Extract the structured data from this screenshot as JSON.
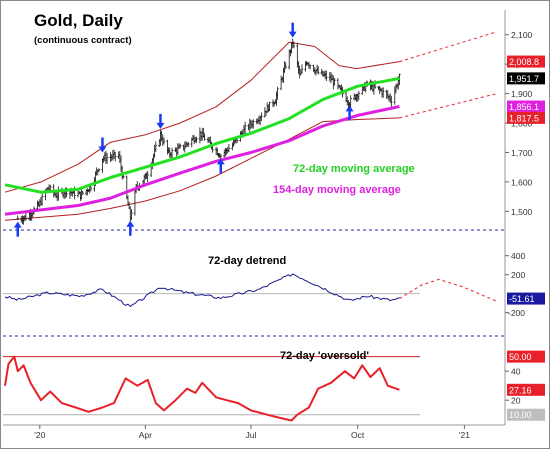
{
  "chart_data": [
    {
      "type": "ohlc",
      "title": "Gold, Daily",
      "subtitle": "(continuous contract)",
      "ylim": [
        1440,
        2150
      ],
      "x_ticks": [
        "'20",
        "Apr",
        "Jul",
        "Oct",
        "'21"
      ],
      "y_ticks": [
        "1,500",
        "1,600",
        "1,700",
        "1,800",
        "1,900",
        "2,000",
        "2,100"
      ],
      "price_labels": [
        {
          "text": "2,008.8",
          "value": 2008.8,
          "color": "#e8202a"
        },
        {
          "text": "1,951.7",
          "value": 1951.7,
          "color": "#000000"
        },
        {
          "text": "1,856.1",
          "value": 1856.1,
          "color": "#e020e0"
        },
        {
          "text": "1,817.5",
          "value": 1817.5,
          "color": "#e8202a"
        }
      ],
      "annotations": [
        "72-day moving average",
        "154-day moving average"
      ],
      "price_anchors": [
        [
          "2019-12-13",
          1475
        ],
        [
          "2019-12-20",
          1480
        ],
        [
          "2019-12-31",
          1520
        ],
        [
          "2020-01-08",
          1580
        ],
        [
          "2020-01-15",
          1555
        ],
        [
          "2020-01-24",
          1570
        ],
        [
          "2020-02-05",
          1555
        ],
        [
          "2020-02-14",
          1585
        ],
        [
          "2020-02-24",
          1680
        ],
        [
          "2020-03-09",
          1690
        ],
        [
          "2020-03-19",
          1480
        ],
        [
          "2020-03-24",
          1580
        ],
        [
          "2020-04-02",
          1620
        ],
        [
          "2020-04-14",
          1760
        ],
        [
          "2020-04-21",
          1695
        ],
        [
          "2020-05-04",
          1720
        ],
        [
          "2020-05-18",
          1765
        ],
        [
          "2020-06-05",
          1690
        ],
        [
          "2020-06-15",
          1725
        ],
        [
          "2020-06-26",
          1780
        ],
        [
          "2020-07-08",
          1820
        ],
        [
          "2020-07-22",
          1880
        ],
        [
          "2020-08-06",
          2075
        ],
        [
          "2020-08-12",
          1960
        ],
        [
          "2020-08-18",
          2010
        ],
        [
          "2020-08-28",
          1970
        ],
        [
          "2020-09-08",
          1950
        ],
        [
          "2020-09-24",
          1870
        ],
        [
          "2020-10-01",
          1900
        ],
        [
          "2020-10-09",
          1930
        ],
        [
          "2020-10-21",
          1910
        ],
        [
          "2020-10-30",
          1880
        ],
        [
          "2020-11-06",
          1955
        ]
      ],
      "series": [
        {
          "name": "72-day moving average",
          "color": "#22e022",
          "points": [
            [
              "2019-12-02",
              1590
            ],
            [
              "2020-01-02",
              1565
            ],
            [
              "2020-02-03",
              1575
            ],
            [
              "2020-03-02",
              1615
            ],
            [
              "2020-04-01",
              1650
            ],
            [
              "2020-05-01",
              1685
            ],
            [
              "2020-06-01",
              1730
            ],
            [
              "2020-07-01",
              1765
            ],
            [
              "2020-08-03",
              1815
            ],
            [
              "2020-09-01",
              1880
            ],
            [
              "2020-10-01",
              1925
            ],
            [
              "2020-11-06",
              1951.7
            ]
          ]
        },
        {
          "name": "154-day moving average",
          "color": "#e020e0",
          "points": [
            [
              "2019-12-02",
              1490
            ],
            [
              "2020-01-02",
              1505
            ],
            [
              "2020-02-03",
              1520
            ],
            [
              "2020-03-02",
              1545
            ],
            [
              "2020-04-01",
              1590
            ],
            [
              "2020-05-01",
              1630
            ],
            [
              "2020-06-01",
              1670
            ],
            [
              "2020-07-01",
              1700
            ],
            [
              "2020-08-03",
              1740
            ],
            [
              "2020-09-01",
              1790
            ],
            [
              "2020-10-01",
              1826
            ],
            [
              "2020-11-06",
              1856.1
            ]
          ]
        },
        {
          "name": "upper band",
          "color": "#b52020",
          "points": [
            [
              "2019-12-02",
              1565
            ],
            [
              "2020-01-02",
              1600
            ],
            [
              "2020-02-03",
              1660
            ],
            [
              "2020-03-02",
              1735
            ],
            [
              "2020-04-01",
              1760
            ],
            [
              "2020-05-01",
              1800
            ],
            [
              "2020-06-01",
              1855
            ],
            [
              "2020-07-01",
              1945
            ],
            [
              "2020-08-03",
              2075
            ],
            [
              "2020-08-25",
              2060
            ],
            [
              "2020-09-15",
              1995
            ],
            [
              "2020-09-30",
              1985
            ],
            [
              "2020-11-06",
              2008.8
            ]
          ]
        },
        {
          "name": "lower band",
          "color": "#b52020",
          "points": [
            [
              "2019-12-02",
              1470
            ],
            [
              "2020-01-02",
              1480
            ],
            [
              "2020-02-03",
              1490
            ],
            [
              "2020-03-02",
              1510
            ],
            [
              "2020-04-01",
              1535
            ],
            [
              "2020-05-01",
              1570
            ],
            [
              "2020-06-01",
              1620
            ],
            [
              "2020-07-01",
              1680
            ],
            [
              "2020-08-03",
              1745
            ],
            [
              "2020-09-01",
              1805
            ],
            [
              "2020-10-01",
              1812
            ],
            [
              "2020-11-06",
              1817.5
            ]
          ]
        },
        {
          "name": "upper band projection",
          "color": "#e8202a",
          "dashed": true,
          "points": [
            [
              "2020-11-06",
              2008.8
            ],
            [
              "2021-01-29",
              2110
            ]
          ]
        },
        {
          "name": "lower band projection",
          "color": "#e8202a",
          "dashed": true,
          "points": [
            [
              "2020-11-06",
              1817.5
            ],
            [
              "2021-01-29",
              1900
            ]
          ]
        }
      ],
      "arrows": [
        {
          "date": "2019-12-13",
          "value": 1465,
          "direction": "up",
          "color": "#1a3cf0"
        },
        {
          "date": "2020-02-24",
          "value": 1700,
          "direction": "down",
          "color": "#1a3cf0"
        },
        {
          "date": "2020-03-19",
          "value": 1468,
          "direction": "up",
          "color": "#1a3cf0"
        },
        {
          "date": "2020-04-14",
          "value": 1780,
          "direction": "down",
          "color": "#1a3cf0"
        },
        {
          "date": "2020-06-05",
          "value": 1680,
          "direction": "up",
          "color": "#1a3cf0"
        },
        {
          "date": "2020-08-06",
          "value": 2090,
          "direction": "down",
          "color": "#1a3cf0"
        },
        {
          "date": "2020-09-24",
          "value": 1860,
          "direction": "up",
          "color": "#1a3cf0"
        }
      ]
    },
    {
      "type": "line",
      "title": "72-day detrend",
      "ylim": [
        -330,
        460
      ],
      "y_ticks": [
        "400",
        "200",
        "-200"
      ],
      "zero_line": 0,
      "current_value_label": {
        "text": "-51.61",
        "value": -51.61
      },
      "series": [
        {
          "name": "72-day detrend",
          "color": "#1a1a8c",
          "points": [
            [
              "2019-12-02",
              -30
            ],
            [
              "2019-12-13",
              -65
            ],
            [
              "2020-01-08",
              10
            ],
            [
              "2020-02-05",
              -25
            ],
            [
              "2020-02-24",
              45
            ],
            [
              "2020-03-19",
              -140
            ],
            [
              "2020-04-14",
              70
            ],
            [
              "2020-05-04",
              15
            ],
            [
              "2020-06-05",
              -45
            ],
            [
              "2020-07-08",
              45
            ],
            [
              "2020-08-06",
              210
            ],
            [
              "2020-08-28",
              85
            ],
            [
              "2020-09-24",
              -75
            ],
            [
              "2020-10-09",
              -25
            ],
            [
              "2020-10-30",
              -70
            ],
            [
              "2020-11-06",
              -51.61
            ]
          ]
        },
        {
          "name": "detrend projection",
          "color": "#e8202a",
          "dashed": true,
          "points": [
            [
              "2020-11-06",
              -51.61
            ],
            [
              "2020-11-25",
              90
            ],
            [
              "2020-12-10",
              150
            ],
            [
              "2020-12-31",
              70
            ],
            [
              "2021-01-29",
              -80
            ]
          ]
        }
      ]
    },
    {
      "type": "line",
      "title": "72-day 'oversold'",
      "ylim": [
        5,
        58
      ],
      "y_ticks": [
        "40",
        "20"
      ],
      "reference_lines": [
        {
          "label": "50.00",
          "value": 50,
          "color": "#c82020"
        },
        {
          "label": "10.00",
          "value": 10,
          "color": "#b0b0b0"
        }
      ],
      "current_value_label": {
        "text": "27.16",
        "value": 27.16
      },
      "series": [
        {
          "name": "72-day 'oversold'",
          "color": "#e8202a",
          "points": [
            [
              "2019-12-02",
              30
            ],
            [
              "2019-12-05",
              45
            ],
            [
              "2019-12-10",
              50
            ],
            [
              "2019-12-13",
              40
            ],
            [
              "2019-12-18",
              44
            ],
            [
              "2019-12-24",
              32
            ],
            [
              "2020-01-02",
              20
            ],
            [
              "2020-01-10",
              26
            ],
            [
              "2020-01-20",
              18
            ],
            [
              "2020-02-01",
              15
            ],
            [
              "2020-02-12",
              12
            ],
            [
              "2020-02-24",
              15
            ],
            [
              "2020-03-05",
              18
            ],
            [
              "2020-03-15",
              35
            ],
            [
              "2020-03-25",
              30
            ],
            [
              "2020-04-03",
              34
            ],
            [
              "2020-04-10",
              18
            ],
            [
              "2020-04-17",
              13
            ],
            [
              "2020-04-27",
              20
            ],
            [
              "2020-05-07",
              28
            ],
            [
              "2020-05-14",
              25
            ],
            [
              "2020-05-20",
              32
            ],
            [
              "2020-06-01",
              22
            ],
            [
              "2020-06-10",
              20
            ],
            [
              "2020-06-20",
              18
            ],
            [
              "2020-07-01",
              13
            ],
            [
              "2020-07-15",
              10
            ],
            [
              "2020-07-25",
              8
            ],
            [
              "2020-08-05",
              6
            ],
            [
              "2020-08-10",
              10
            ],
            [
              "2020-08-20",
              15
            ],
            [
              "2020-08-28",
              28
            ],
            [
              "2020-09-08",
              32
            ],
            [
              "2020-09-20",
              40
            ],
            [
              "2020-09-28",
              35
            ],
            [
              "2020-10-05",
              44
            ],
            [
              "2020-10-12",
              36
            ],
            [
              "2020-10-20",
              42
            ],
            [
              "2020-10-27",
              30
            ],
            [
              "2020-11-06",
              27.16
            ]
          ]
        }
      ]
    }
  ]
}
